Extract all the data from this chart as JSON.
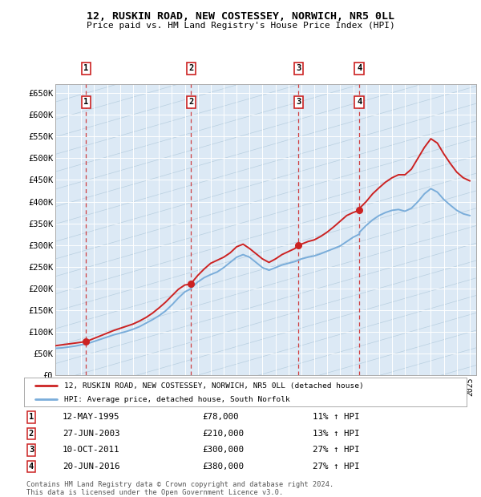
{
  "title_line1": "12, RUSKIN ROAD, NEW COSTESSEY, NORWICH, NR5 0LL",
  "title_line2": "Price paid vs. HM Land Registry's House Price Index (HPI)",
  "bg_color": "#dce9f5",
  "hatch_color": "#c8daea",
  "grid_color": "#ffffff",
  "yticks": [
    0,
    50000,
    100000,
    150000,
    200000,
    250000,
    300000,
    350000,
    400000,
    450000,
    500000,
    550000,
    600000,
    650000
  ],
  "ytick_labels": [
    "£0",
    "£50K",
    "£100K",
    "£150K",
    "£200K",
    "£250K",
    "£300K",
    "£350K",
    "£400K",
    "£450K",
    "£500K",
    "£550K",
    "£600K",
    "£650K"
  ],
  "xlim_start": 1993.0,
  "xlim_end": 2025.5,
  "ylim_min": 0,
  "ylim_max": 670000,
  "sale_dates": [
    1995.37,
    2003.49,
    2011.78,
    2016.47
  ],
  "sale_prices": [
    78000,
    210000,
    300000,
    380000
  ],
  "sale_labels": [
    "1",
    "2",
    "3",
    "4"
  ],
  "sale_dates_str": [
    "12-MAY-1995",
    "27-JUN-2003",
    "10-OCT-2011",
    "20-JUN-2016"
  ],
  "sale_prices_str": [
    "£78,000",
    "£210,000",
    "£300,000",
    "£380,000"
  ],
  "sale_pct": [
    "11% ↑ HPI",
    "13% ↑ HPI",
    "27% ↑ HPI",
    "27% ↑ HPI"
  ],
  "hpi_color": "#7aadda",
  "price_color": "#cc2222",
  "legend_label_price": "12, RUSKIN ROAD, NEW COSTESSEY, NORWICH, NR5 0LL (detached house)",
  "legend_label_hpi": "HPI: Average price, detached house, South Norfolk",
  "footer": "Contains HM Land Registry data © Crown copyright and database right 2024.\nThis data is licensed under the Open Government Licence v3.0.",
  "hpi_x": [
    1993.0,
    1993.5,
    1994.0,
    1994.5,
    1995.0,
    1995.37,
    1995.5,
    1996.0,
    1996.5,
    1997.0,
    1997.5,
    1998.0,
    1998.5,
    1999.0,
    1999.5,
    2000.0,
    2000.5,
    2001.0,
    2001.5,
    2002.0,
    2002.5,
    2003.0,
    2003.49,
    2003.5,
    2004.0,
    2004.5,
    2005.0,
    2005.5,
    2006.0,
    2006.5,
    2007.0,
    2007.5,
    2008.0,
    2008.5,
    2009.0,
    2009.5,
    2010.0,
    2010.5,
    2011.0,
    2011.5,
    2011.78,
    2012.0,
    2012.5,
    2013.0,
    2013.5,
    2014.0,
    2014.5,
    2015.0,
    2015.5,
    2016.0,
    2016.47,
    2016.5,
    2017.0,
    2017.5,
    2018.0,
    2018.5,
    2019.0,
    2019.5,
    2020.0,
    2020.5,
    2021.0,
    2021.5,
    2022.0,
    2022.5,
    2023.0,
    2023.5,
    2024.0,
    2024.5,
    2025.0
  ],
  "hpi_y": [
    62000,
    63000,
    65000,
    67000,
    70000,
    72000,
    73000,
    78000,
    83000,
    88000,
    93000,
    97000,
    101000,
    106000,
    112000,
    120000,
    128000,
    137000,
    148000,
    162000,
    178000,
    192000,
    200000,
    201000,
    215000,
    225000,
    232000,
    238000,
    248000,
    260000,
    272000,
    278000,
    272000,
    260000,
    248000,
    242000,
    248000,
    254000,
    258000,
    262000,
    265000,
    268000,
    272000,
    275000,
    280000,
    286000,
    292000,
    298000,
    308000,
    318000,
    325000,
    330000,
    345000,
    358000,
    368000,
    375000,
    380000,
    382000,
    378000,
    385000,
    400000,
    418000,
    430000,
    422000,
    405000,
    392000,
    380000,
    372000,
    368000
  ],
  "price_x": [
    1993.0,
    1993.5,
    1994.0,
    1994.5,
    1995.0,
    1995.37,
    1995.5,
    1996.0,
    1996.5,
    1997.0,
    1997.5,
    1998.0,
    1998.5,
    1999.0,
    1999.5,
    2000.0,
    2000.5,
    2001.0,
    2001.5,
    2002.0,
    2002.5,
    2003.0,
    2003.49,
    2003.5,
    2004.0,
    2004.5,
    2005.0,
    2005.5,
    2006.0,
    2006.5,
    2007.0,
    2007.5,
    2008.0,
    2008.5,
    2009.0,
    2009.5,
    2010.0,
    2010.5,
    2011.0,
    2011.5,
    2011.78,
    2012.0,
    2012.5,
    2013.0,
    2013.5,
    2014.0,
    2014.5,
    2015.0,
    2015.5,
    2016.0,
    2016.47,
    2016.5,
    2017.0,
    2017.5,
    2018.0,
    2018.5,
    2019.0,
    2019.5,
    2020.0,
    2020.5,
    2021.0,
    2021.5,
    2022.0,
    2022.5,
    2023.0,
    2023.5,
    2024.0,
    2024.5,
    2025.0
  ],
  "price_y": [
    68000,
    70000,
    72000,
    74000,
    76000,
    78000,
    79000,
    85000,
    91000,
    97000,
    103000,
    108000,
    113000,
    118000,
    125000,
    133000,
    143000,
    155000,
    168000,
    183000,
    198000,
    208000,
    210000,
    212000,
    230000,
    245000,
    258000,
    265000,
    272000,
    282000,
    296000,
    302000,
    292000,
    280000,
    268000,
    260000,
    268000,
    278000,
    285000,
    292000,
    300000,
    302000,
    308000,
    312000,
    320000,
    330000,
    342000,
    355000,
    368000,
    375000,
    380000,
    385000,
    400000,
    418000,
    432000,
    445000,
    455000,
    462000,
    462000,
    475000,
    500000,
    525000,
    545000,
    535000,
    510000,
    488000,
    468000,
    455000,
    448000
  ]
}
